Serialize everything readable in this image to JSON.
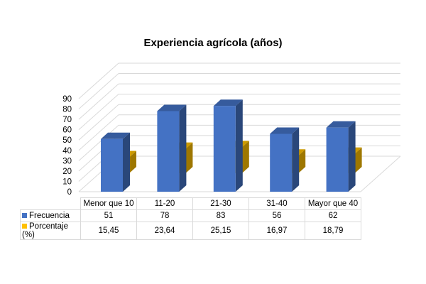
{
  "chart_data": {
    "type": "bar",
    "title": "Experiencia agrícola (años)",
    "categories": [
      "Menor que 10",
      "11-20",
      "21-30",
      "31-40",
      "Mayor que 40"
    ],
    "series": [
      {
        "name": "Frecuencia",
        "values": [
          51,
          78,
          83,
          56,
          62
        ],
        "labels": [
          "51",
          "78",
          "83",
          "56",
          "62"
        ],
        "color": "#4472C4"
      },
      {
        "name": "Porcentaje (%)",
        "values": [
          15.45,
          23.64,
          25.15,
          16.97,
          18.79
        ],
        "labels": [
          "15,45",
          "23,64",
          "25,15",
          "16,97",
          "18,79"
        ],
        "color": "#FFC000"
      }
    ],
    "yticks": [
      "0",
      "10",
      "20",
      "30",
      "40",
      "50",
      "60",
      "70",
      "80",
      "90"
    ],
    "ylim": [
      0,
      90
    ],
    "grid": true,
    "legend": "data-table"
  }
}
